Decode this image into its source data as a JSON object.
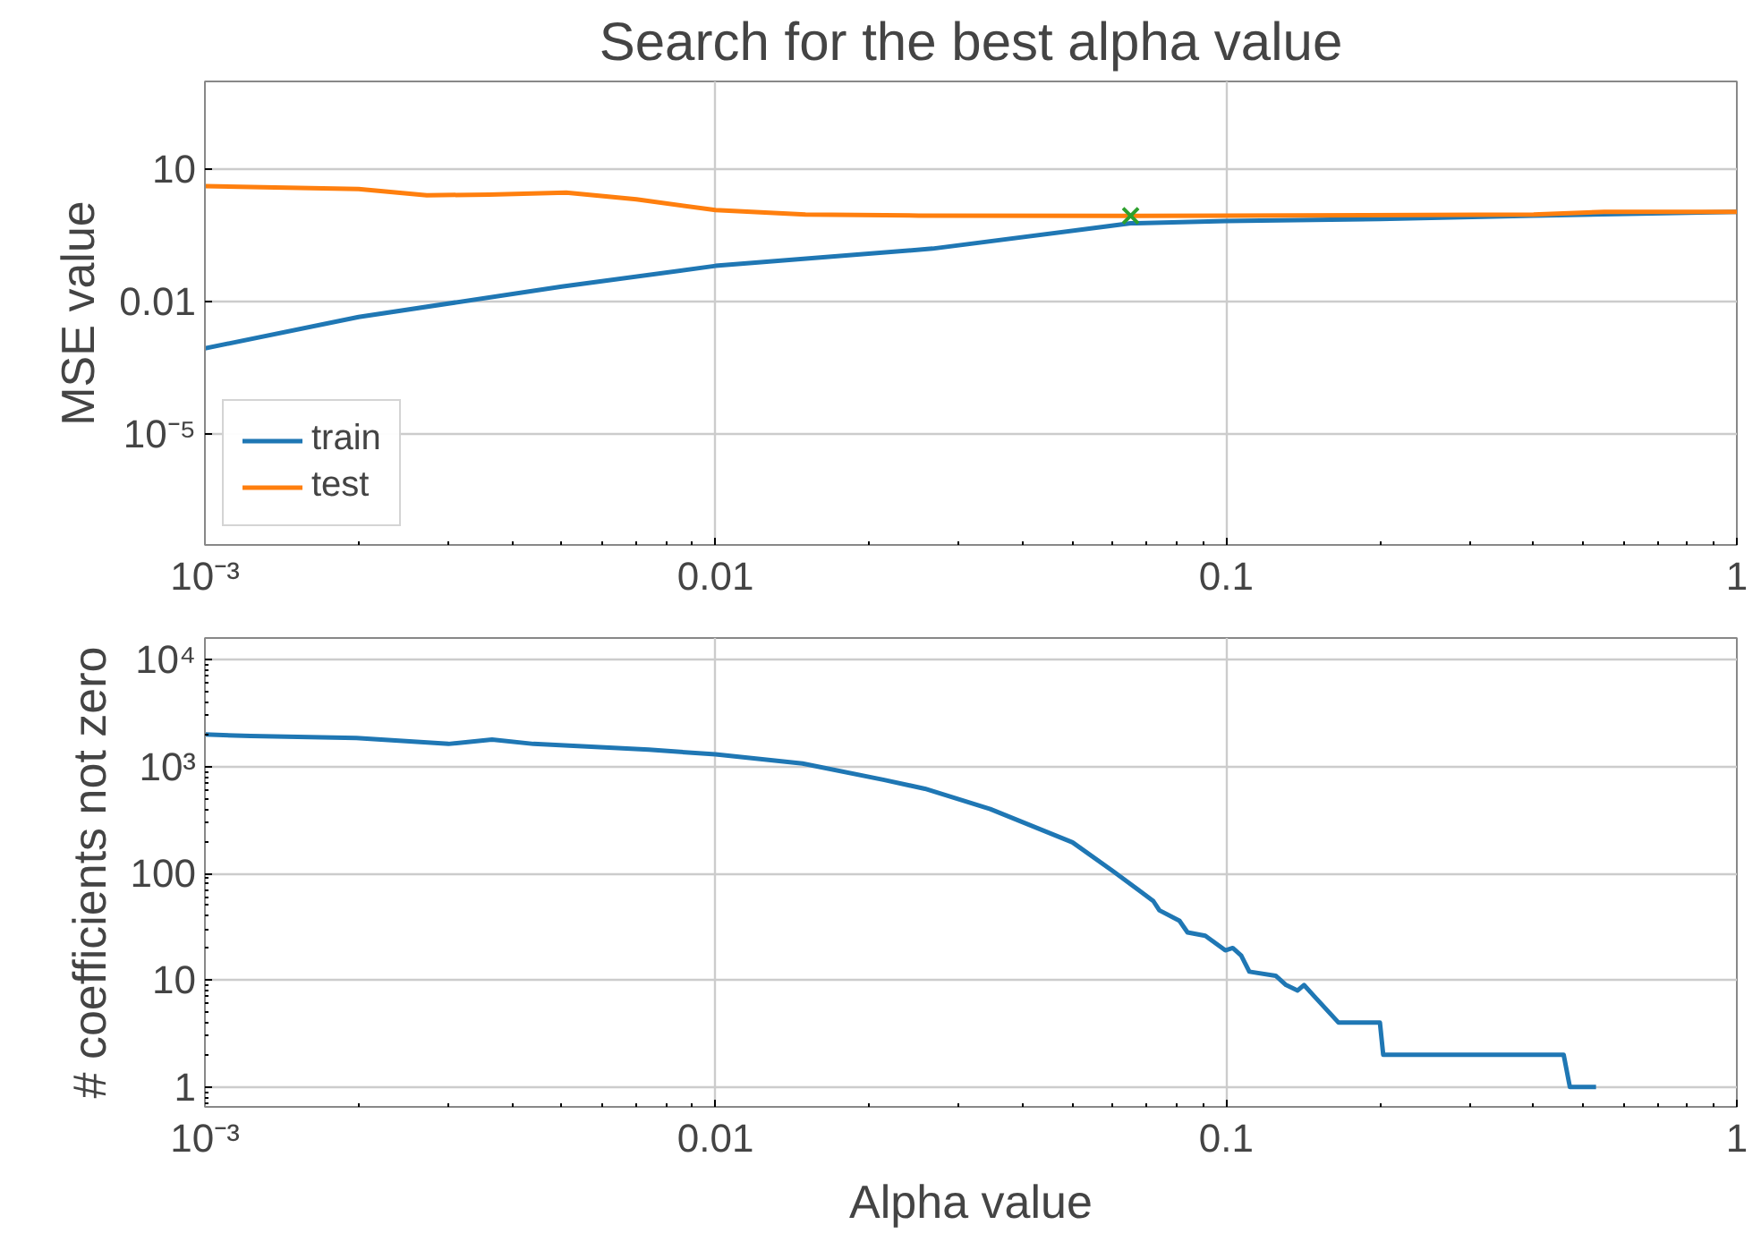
{
  "chart_data": [
    {
      "type": "line",
      "title": "Search for the best alpha value",
      "ylabel": "MSE value",
      "log": "xy",
      "grid": true,
      "legend": "bottom left",
      "xlim": [
        0.001,
        1
      ],
      "xticks": [
        {
          "value": 0.001,
          "label": "10⁻³"
        },
        0.01,
        0.1,
        1
      ],
      "ylim": [
        3e-08,
        1000
      ],
      "yticks": [
        {
          "value": 1e-05,
          "label": "10⁻⁵"
        },
        0.01,
        10
      ],
      "series": [
        {
          "name": "train",
          "color": "#1f77b4",
          "x": [
            0.001,
            0.002,
            0.005,
            0.01,
            0.0266,
            0.065,
            0.1,
            0.2,
            0.4,
            1
          ],
          "values": [
            0.00087,
            0.0045,
            0.022,
            0.065,
            0.16,
            0.6,
            0.68,
            0.75,
            0.9,
            1.1
          ]
        },
        {
          "name": "test",
          "color": "#ff7f0e",
          "x": [
            0.001,
            0.002,
            0.00272,
            0.0036,
            0.0051,
            0.007,
            0.01,
            0.015,
            0.025,
            0.065,
            0.1,
            0.4,
            0.55,
            1
          ],
          "values": [
            4.2,
            3.6,
            2.6,
            2.7,
            3.0,
            2.1,
            1.2,
            0.95,
            0.9,
            0.89,
            0.9,
            0.95,
            1.1,
            1.1
          ]
        },
        {
          "type": "scatter",
          "marker": "cross",
          "color": "#2ca02c",
          "x": [
            0.065
          ],
          "values": [
            0.89
          ]
        }
      ]
    },
    {
      "type": "line",
      "xlabel": "Alpha value",
      "ylabel": "# coefficients not zero",
      "log": "xy",
      "grid": true,
      "xlim": [
        0.001,
        1
      ],
      "xticks": [
        {
          "value": 0.001,
          "label": "10⁻³"
        },
        0.01,
        0.1,
        1
      ],
      "ylim": [
        0.65,
        16000
      ],
      "yticks": [
        1,
        10,
        100,
        {
          "value": 1000,
          "label": "10³"
        },
        {
          "value": 10000,
          "label": "10⁴"
        }
      ],
      "series": [
        {
          "color": "#1f77b4",
          "x": [
            0.001,
            0.00123,
            0.00198,
            0.003,
            0.00365,
            0.0044,
            0.0074,
            0.01,
            0.0148,
            0.0214,
            0.0257,
            0.0345,
            0.05,
            0.06,
            0.072,
            0.074,
            0.081,
            0.084,
            0.091,
            0.0996,
            0.103,
            0.107,
            0.111,
            0.125,
            0.131,
            0.138,
            0.142,
            0.149,
            0.166,
            0.2,
            0.203,
            0.458,
            0.471,
            0.53
          ],
          "values": [
            2000,
            1930,
            1850,
            1630,
            1790,
            1630,
            1440,
            1300,
            1070,
            750,
            620,
            400,
            195,
            105,
            55,
            45,
            36,
            28,
            26,
            19,
            20,
            17,
            12,
            11,
            9,
            8,
            9,
            7,
            4,
            4,
            2,
            2,
            1,
            1
          ]
        }
      ]
    }
  ]
}
